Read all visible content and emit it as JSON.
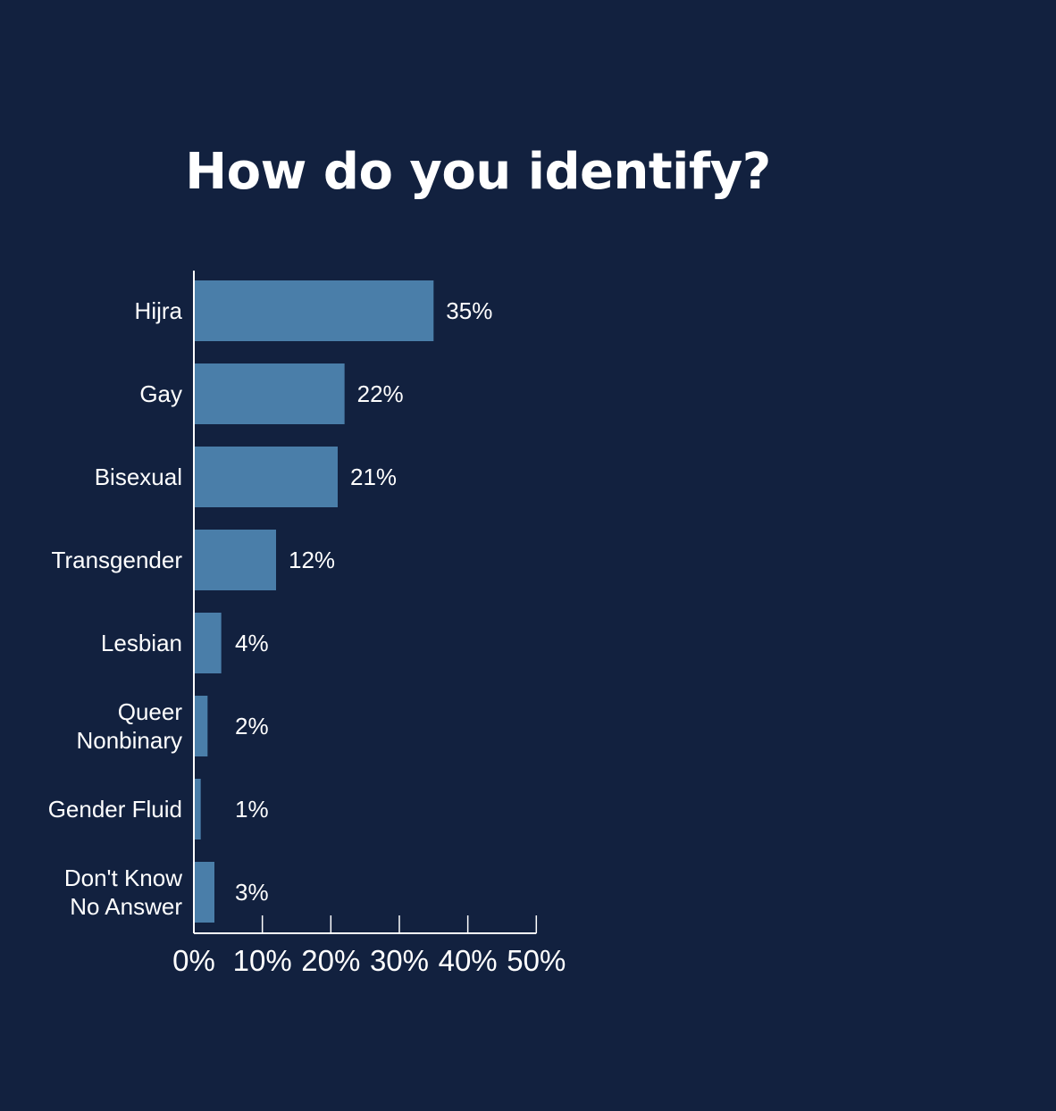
{
  "chart_data": {
    "type": "bar",
    "orientation": "horizontal",
    "title": "How do you identify?",
    "xlabel": "",
    "ylabel": "",
    "categories": [
      [
        "Hijra"
      ],
      [
        "Gay"
      ],
      [
        "Bisexual"
      ],
      [
        "Transgender"
      ],
      [
        "Lesbian"
      ],
      [
        "Queer",
        "Nonbinary"
      ],
      [
        "Gender Fluid"
      ],
      [
        "Don't Know",
        "No Answer"
      ]
    ],
    "values": [
      35,
      22,
      21,
      12,
      4,
      2,
      1,
      3
    ],
    "value_labels": [
      "35%",
      "22%",
      "21%",
      "12%",
      "4%",
      "2%",
      "1%",
      "3%"
    ],
    "xlim": [
      0,
      50
    ],
    "xticks": [
      0,
      10,
      20,
      30,
      40,
      50
    ],
    "xtick_labels": [
      "0%",
      "10%",
      "20%",
      "30%",
      "40%",
      "50%"
    ],
    "grid": false,
    "legend": "none"
  },
  "colors": {
    "background": "#12213f",
    "bar": "#4a7ea9",
    "axis": "#ffffff",
    "text": "#ffffff"
  }
}
